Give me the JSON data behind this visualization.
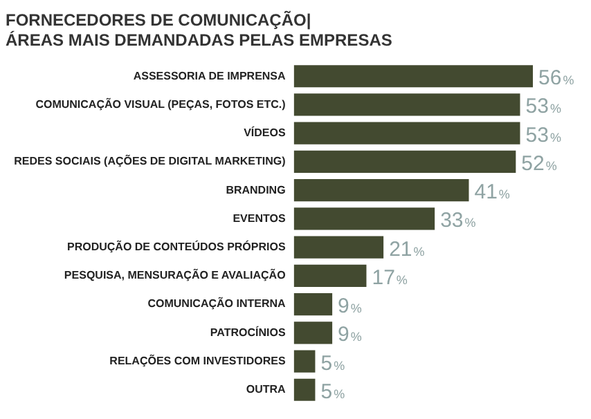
{
  "chart_data": {
    "type": "bar",
    "orientation": "horizontal",
    "title": "FORNECEDORES DE COMUNICAÇÃO|",
    "subtitle": "ÁREAS MAIS DEMANDADAS PELAS EMPRESAS",
    "categories": [
      "ASSESSORIA DE IMPRENSA",
      "COMUNICAÇÃO VISUAL (PEÇAS, FOTOS ETC.)",
      "VÍDEOS",
      "REDES SOCIAIS (AÇÕES DE DIGITAL MARKETING)",
      "BRANDING",
      "EVENTOS",
      "PRODUÇÃO DE CONTEÚDOS PRÓPRIOS",
      "PESQUISA, MENSURAÇÃO E AVALIAÇÃO",
      "COMUNICAÇÃO INTERNA",
      "PATROCÍNIOS",
      "RELAÇÕES COM INVESTIDORES",
      "OUTRA"
    ],
    "values": [
      56,
      53,
      53,
      52,
      41,
      33,
      21,
      17,
      9,
      9,
      5,
      5
    ],
    "value_labels": [
      "56%",
      "53%",
      "53%",
      "52%",
      "41%",
      "33%",
      "21%",
      "17%",
      "9%",
      "9%",
      "5%",
      "5%"
    ],
    "color": "#434a30",
    "tick_labels": "y",
    "grid": false,
    "legend": false
  }
}
